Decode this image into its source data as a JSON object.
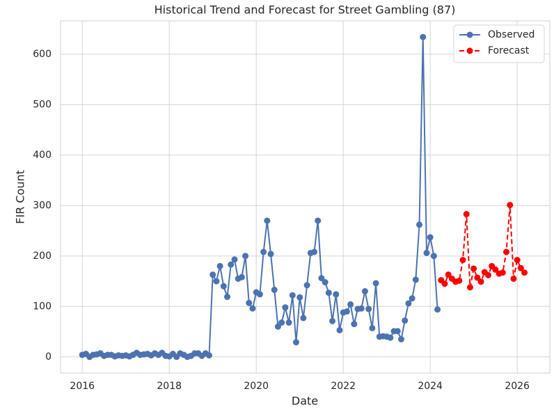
{
  "chart_data": {
    "type": "line",
    "title": "Historical Trend and Forecast for Street Gambling (87)",
    "x_label": "Date",
    "y_label": "FIR Count",
    "xlim": [
      "2015-07",
      "2026-10"
    ],
    "xticks": [
      {
        "value": "2016-01",
        "label": "2016"
      },
      {
        "value": "2018-01",
        "label": "2018"
      },
      {
        "value": "2020-01",
        "label": "2020"
      },
      {
        "value": "2022-01",
        "label": "2022"
      },
      {
        "value": "2024-01",
        "label": "2024"
      },
      {
        "value": "2026-01",
        "label": "2026"
      }
    ],
    "ylim": [
      -32,
      666
    ],
    "yticks": [
      0,
      100,
      200,
      300,
      400,
      500,
      600
    ],
    "grid": true,
    "legend": "upper right",
    "series": [
      {
        "name": "Observed",
        "color": "#4c72b0",
        "linestyle": "solid",
        "x": [
          "2016-01",
          "2016-02",
          "2016-03",
          "2016-04",
          "2016-05",
          "2016-06",
          "2016-07",
          "2016-08",
          "2016-09",
          "2016-10",
          "2016-11",
          "2016-12",
          "2017-01",
          "2017-02",
          "2017-03",
          "2017-04",
          "2017-05",
          "2017-06",
          "2017-07",
          "2017-08",
          "2017-09",
          "2017-10",
          "2017-11",
          "2017-12",
          "2018-01",
          "2018-02",
          "2018-03",
          "2018-04",
          "2018-05",
          "2018-06",
          "2018-07",
          "2018-08",
          "2018-09",
          "2018-10",
          "2018-11",
          "2018-12",
          "2019-01",
          "2019-02",
          "2019-03",
          "2019-04",
          "2019-05",
          "2019-06",
          "2019-07",
          "2019-08",
          "2019-09",
          "2019-10",
          "2019-11",
          "2019-12",
          "2020-01",
          "2020-02",
          "2020-03",
          "2020-04",
          "2020-05",
          "2020-06",
          "2020-07",
          "2020-08",
          "2020-09",
          "2020-10",
          "2020-11",
          "2020-12",
          "2021-01",
          "2021-02",
          "2021-03",
          "2021-04",
          "2021-05",
          "2021-06",
          "2021-07",
          "2021-08",
          "2021-09",
          "2021-10",
          "2021-11",
          "2021-12",
          "2022-01",
          "2022-02",
          "2022-03",
          "2022-04",
          "2022-05",
          "2022-06",
          "2022-07",
          "2022-08",
          "2022-09",
          "2022-10",
          "2022-11",
          "2022-12",
          "2023-01",
          "2023-02",
          "2023-03",
          "2023-04",
          "2023-05",
          "2023-06",
          "2023-07",
          "2023-08",
          "2023-09",
          "2023-10",
          "2023-11",
          "2023-12",
          "2024-01",
          "2024-02",
          "2024-03"
        ],
        "values": [
          4,
          6,
          0,
          4,
          5,
          7,
          2,
          4,
          4,
          1,
          3,
          2,
          3,
          1,
          4,
          8,
          4,
          5,
          6,
          3,
          7,
          4,
          8,
          2,
          1,
          6,
          0,
          7,
          4,
          0,
          2,
          7,
          7,
          2,
          7,
          3,
          163,
          150,
          180,
          140,
          119,
          183,
          193,
          155,
          158,
          200,
          107,
          96,
          128,
          124,
          208,
          270,
          204,
          133,
          60,
          68,
          98,
          68,
          122,
          29,
          118,
          77,
          142,
          206,
          208,
          270,
          156,
          148,
          127,
          71,
          124,
          53,
          88,
          90,
          104,
          65,
          95,
          96,
          130,
          95,
          57,
          146,
          40,
          41,
          40,
          38,
          51,
          51,
          35,
          72,
          106,
          116,
          153,
          262,
          634,
          206,
          237,
          200,
          94
        ]
      },
      {
        "name": "Forecast",
        "color": "#ff0000",
        "linestyle": "dashed",
        "x": [
          "2024-04",
          "2024-05",
          "2024-06",
          "2024-07",
          "2024-08",
          "2024-09",
          "2024-10",
          "2024-11",
          "2024-12",
          "2025-01",
          "2025-02",
          "2025-03",
          "2025-04",
          "2025-05",
          "2025-06",
          "2025-07",
          "2025-08",
          "2025-09",
          "2025-10",
          "2025-11",
          "2025-12",
          "2026-01",
          "2026-02",
          "2026-03"
        ],
        "values": [
          152,
          145,
          163,
          155,
          149,
          151,
          192,
          283,
          138,
          175,
          157,
          149,
          168,
          162,
          180,
          173,
          165,
          167,
          208,
          301,
          155,
          192,
          176,
          167
        ]
      }
    ]
  }
}
